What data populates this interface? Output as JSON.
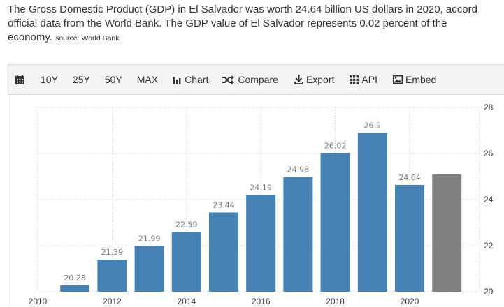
{
  "description": {
    "line1": "The Gross Domestic Product (GDP) in El Salvador was worth 24.64 billion US dollars in 2020, accord",
    "line2": "official data from the World Bank. The GDP value of El Salvador represents 0.02 percent of the",
    "line3": "economy.",
    "source": "source: World Bank"
  },
  "toolbar": {
    "range_10y": "10Y",
    "range_25y": "25Y",
    "range_50y": "50Y",
    "range_max": "MAX",
    "chart": "Chart",
    "compare": "Compare",
    "export": "Export",
    "api": "API",
    "embed": "Embed"
  },
  "chart_data": {
    "type": "bar",
    "x": [
      2011,
      2012,
      2013,
      2014,
      2015,
      2016,
      2017,
      2018,
      2019,
      2020,
      2021
    ],
    "values": [
      20.28,
      21.39,
      21.99,
      22.59,
      23.44,
      24.19,
      24.98,
      26.02,
      26.9,
      24.64,
      25.1
    ],
    "data_labels": [
      "20.28",
      "21.39",
      "21.99",
      "22.59",
      "23.44",
      "24.19",
      "24.98",
      "26.02",
      "26.9",
      "24.64",
      ""
    ],
    "x_ticks": [
      2010,
      2012,
      2014,
      2016,
      2018,
      2020
    ],
    "y_ticks": [
      20,
      22,
      24,
      26,
      28
    ],
    "ylim": [
      20,
      28
    ],
    "y_axis_side": "right",
    "grid": true,
    "bar_color": "#4682b4",
    "forecast_color": "#808080"
  }
}
